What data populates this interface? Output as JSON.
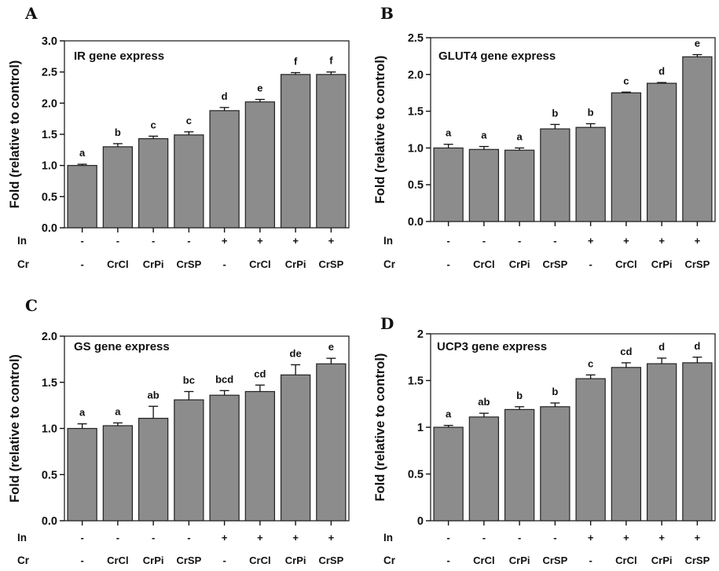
{
  "chart_data": [
    {
      "type": "bar",
      "panel": "A",
      "title": "IR gene express",
      "ylabel": "Fold (relative to control)",
      "ylim": [
        0,
        3.0
      ],
      "yticks": [
        "0.0",
        "0.5",
        "1.0",
        "1.5",
        "2.0",
        "2.5",
        "3.0"
      ],
      "values": [
        1.0,
        1.3,
        1.43,
        1.49,
        1.88,
        2.02,
        2.46,
        2.46
      ],
      "errors": [
        0.02,
        0.05,
        0.04,
        0.05,
        0.05,
        0.04,
        0.03,
        0.04
      ],
      "significance": [
        "a",
        "b",
        "c",
        "c",
        "d",
        "e",
        "f",
        "f"
      ],
      "rows": [
        {
          "label": "In",
          "cells": [
            "-",
            "-",
            "-",
            "-",
            "+",
            "+",
            "+",
            "+"
          ]
        },
        {
          "label": "Cr",
          "cells": [
            "-",
            "CrCl",
            "CrPi",
            "CrSP",
            "-",
            "CrCl",
            "CrPi",
            "CrSP"
          ]
        }
      ]
    },
    {
      "type": "bar",
      "panel": "B",
      "title": "GLUT4 gene express",
      "ylabel": "Fold (relative to control)",
      "ylim": [
        0,
        2.5
      ],
      "yticks": [
        "0.0",
        "0.5",
        "1.0",
        "1.5",
        "2.0",
        "2.5"
      ],
      "values": [
        1.0,
        0.98,
        0.97,
        1.26,
        1.28,
        1.75,
        1.88,
        2.24
      ],
      "errors": [
        0.05,
        0.04,
        0.03,
        0.06,
        0.05,
        0.01,
        0.01,
        0.03
      ],
      "significance": [
        "a",
        "a",
        "a",
        "b",
        "b",
        "c",
        "d",
        "e"
      ],
      "rows": [
        {
          "label": "In",
          "cells": [
            "-",
            "-",
            "-",
            "-",
            "+",
            "+",
            "+",
            "+"
          ]
        },
        {
          "label": "Cr",
          "cells": [
            "-",
            "CrCl",
            "CrPi",
            "CrSP",
            "-",
            "CrCl",
            "CrPi",
            "CrSP"
          ]
        }
      ]
    },
    {
      "type": "bar",
      "panel": "C",
      "title": "GS gene express",
      "ylabel": "Fold (relative to control)",
      "ylim": [
        0,
        2.0
      ],
      "yticks": [
        "0.0",
        "0.5",
        "1.0",
        "1.5",
        "2.0"
      ],
      "values": [
        1.0,
        1.03,
        1.11,
        1.31,
        1.36,
        1.4,
        1.58,
        1.7
      ],
      "errors": [
        0.05,
        0.03,
        0.13,
        0.09,
        0.05,
        0.07,
        0.11,
        0.06
      ],
      "significance": [
        "a",
        "a",
        "ab",
        "bc",
        "bcd",
        "cd",
        "de",
        "e"
      ],
      "rows": [
        {
          "label": "In",
          "cells": [
            "-",
            "-",
            "-",
            "-",
            "+",
            "+",
            "+",
            "+"
          ]
        },
        {
          "label": "Cr",
          "cells": [
            "-",
            "CrCl",
            "CrPi",
            "CrSP",
            "-",
            "CrCl",
            "CrPi",
            "CrSP"
          ]
        }
      ]
    },
    {
      "type": "bar",
      "panel": "D",
      "title": "UCP3 gene express",
      "ylabel": "Fold (relative to control)",
      "ylim": [
        0,
        2
      ],
      "yticks": [
        "0",
        "0.5",
        "1",
        "1.5",
        "2"
      ],
      "values": [
        1.0,
        1.11,
        1.19,
        1.22,
        1.52,
        1.64,
        1.68,
        1.69
      ],
      "errors": [
        0.02,
        0.04,
        0.03,
        0.04,
        0.04,
        0.05,
        0.06,
        0.06
      ],
      "significance": [
        "a",
        "ab",
        "b",
        "b",
        "c",
        "cd",
        "d",
        "d"
      ],
      "rows": [
        {
          "label": "In",
          "cells": [
            "-",
            "-",
            "-",
            "-",
            "+",
            "+",
            "+",
            "+"
          ]
        },
        {
          "label": "Cr",
          "cells": [
            "-",
            "CrCl",
            "CrPi",
            "CrSP",
            "-",
            "CrCl",
            "CrPi",
            "CrSP"
          ]
        }
      ]
    }
  ]
}
